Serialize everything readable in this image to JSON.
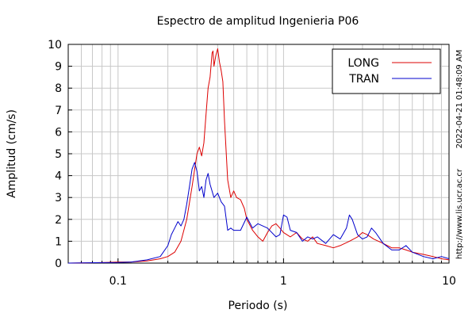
{
  "chart_data": {
    "type": "line",
    "title": "Espectro de amplitud Ingenieria P06",
    "xlabel": "Periodo (s)",
    "ylabel": "Amplitud (cm/s)",
    "xscale": "log",
    "xlim": [
      0.05,
      10
    ],
    "ylim": [
      0,
      10
    ],
    "xticks": [
      0.1,
      1,
      10
    ],
    "xtick_labels": [
      "0.1",
      "1",
      "10"
    ],
    "yticks": [
      0,
      1,
      2,
      3,
      4,
      5,
      6,
      7,
      8,
      9,
      10
    ],
    "ytick_labels": [
      "0",
      "1",
      "2",
      "3",
      "4",
      "5",
      "6",
      "7",
      "8",
      "9",
      "10"
    ],
    "grid": true,
    "legend_position": "top-right",
    "timestamp": "2022-04-21 01:48:09 AM",
    "url": "http://www.lis.ucr.ac.cr",
    "series": [
      {
        "name": "LONG",
        "color": "#dd0000",
        "x": [
          0.05,
          0.08,
          0.1,
          0.12,
          0.15,
          0.18,
          0.2,
          0.22,
          0.24,
          0.26,
          0.28,
          0.3,
          0.31,
          0.32,
          0.33,
          0.34,
          0.35,
          0.36,
          0.37,
          0.375,
          0.38,
          0.39,
          0.4,
          0.41,
          0.42,
          0.43,
          0.44,
          0.46,
          0.48,
          0.5,
          0.52,
          0.55,
          0.58,
          0.6,
          0.65,
          0.7,
          0.75,
          0.8,
          0.85,
          0.9,
          0.95,
          1.0,
          1.1,
          1.2,
          1.3,
          1.4,
          1.5,
          1.6,
          1.8,
          2.0,
          2.2,
          2.5,
          2.8,
          3.0,
          3.2,
          3.5,
          4.0,
          4.5,
          5.0,
          5.5,
          6.0,
          7.0,
          8.0,
          9.0,
          10.0
        ],
        "y": [
          0.0,
          0.02,
          0.05,
          0.05,
          0.1,
          0.2,
          0.3,
          0.5,
          1.0,
          2.0,
          3.5,
          5.0,
          5.3,
          4.9,
          5.5,
          6.8,
          8.0,
          8.5,
          9.6,
          9.7,
          9.0,
          9.5,
          9.8,
          9.2,
          8.8,
          8.3,
          6.5,
          3.8,
          3.0,
          3.3,
          3.0,
          2.9,
          2.5,
          2.0,
          1.5,
          1.2,
          1.0,
          1.4,
          1.7,
          1.8,
          1.6,
          1.4,
          1.2,
          1.4,
          1.1,
          1.0,
          1.2,
          0.9,
          0.8,
          0.7,
          0.8,
          1.0,
          1.2,
          1.4,
          1.3,
          1.1,
          0.9,
          0.7,
          0.7,
          0.6,
          0.5,
          0.4,
          0.3,
          0.2,
          0.15
        ]
      },
      {
        "name": "TRAN",
        "color": "#0000cc",
        "x": [
          0.05,
          0.08,
          0.1,
          0.12,
          0.15,
          0.18,
          0.2,
          0.21,
          0.22,
          0.23,
          0.24,
          0.25,
          0.26,
          0.27,
          0.28,
          0.29,
          0.3,
          0.31,
          0.32,
          0.33,
          0.34,
          0.35,
          0.36,
          0.38,
          0.4,
          0.42,
          0.44,
          0.46,
          0.48,
          0.5,
          0.55,
          0.6,
          0.65,
          0.7,
          0.8,
          0.9,
          0.95,
          1.0,
          1.05,
          1.1,
          1.2,
          1.3,
          1.4,
          1.5,
          1.6,
          1.8,
          2.0,
          2.2,
          2.4,
          2.5,
          2.6,
          2.8,
          3.0,
          3.2,
          3.4,
          3.6,
          4.0,
          4.5,
          5.0,
          5.5,
          6.0,
          7.0,
          8.0,
          9.0,
          10.0
        ],
        "y": [
          0.0,
          0.02,
          0.03,
          0.05,
          0.15,
          0.3,
          0.8,
          1.3,
          1.6,
          1.9,
          1.7,
          2.0,
          2.7,
          3.5,
          4.3,
          4.6,
          4.2,
          3.3,
          3.5,
          3.0,
          3.8,
          4.1,
          3.6,
          3.0,
          3.2,
          2.8,
          2.6,
          1.5,
          1.6,
          1.5,
          1.5,
          2.1,
          1.6,
          1.8,
          1.6,
          1.2,
          1.3,
          2.2,
          2.1,
          1.5,
          1.4,
          1.0,
          1.2,
          1.1,
          1.2,
          0.9,
          1.3,
          1.1,
          1.6,
          2.2,
          2.0,
          1.3,
          1.1,
          1.2,
          1.6,
          1.4,
          0.9,
          0.6,
          0.6,
          0.8,
          0.5,
          0.3,
          0.2,
          0.3,
          0.2
        ]
      }
    ]
  }
}
